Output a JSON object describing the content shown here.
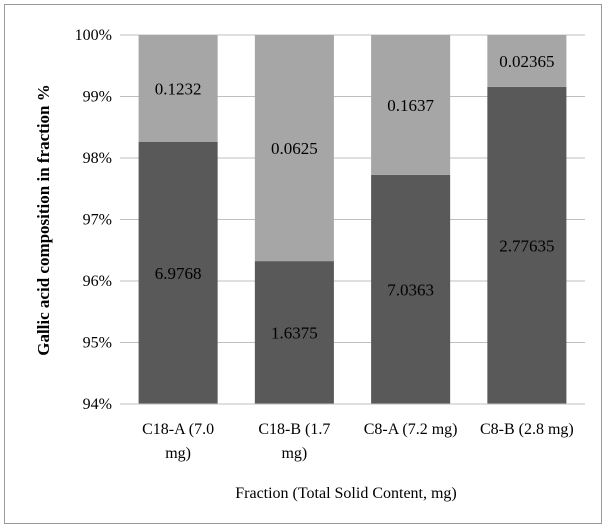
{
  "chart_data": {
    "type": "bar",
    "stacked": true,
    "normalized": true,
    "title": "",
    "xlabel": "Fraction (Total Solid Content, mg)",
    "ylabel": "Gallic acid composition in fraction %",
    "ylim": [
      94,
      100
    ],
    "yticks": [
      "94%",
      "95%",
      "96%",
      "97%",
      "98%",
      "99%",
      "100%"
    ],
    "grid": true,
    "legend": "none",
    "categories": [
      [
        "C18-A (7.0",
        "mg)"
      ],
      [
        "C18-B (1.7",
        "mg)"
      ],
      [
        "C8-A (7.2 mg)"
      ],
      [
        "C8-B (2.8 mg)"
      ]
    ],
    "series": [
      {
        "color": "#595959",
        "values": [
          6.9768,
          1.6375,
          7.0363,
          2.77635
        ],
        "labels": [
          "6.9768",
          "1.6375",
          "7.0363",
          "2.77635"
        ]
      },
      {
        "color": "#a6a6a6",
        "values": [
          0.1232,
          0.0625,
          0.1637,
          0.02365
        ],
        "labels": [
          "0.1232",
          "0.0625",
          "0.1637",
          "0.02365"
        ]
      }
    ]
  }
}
